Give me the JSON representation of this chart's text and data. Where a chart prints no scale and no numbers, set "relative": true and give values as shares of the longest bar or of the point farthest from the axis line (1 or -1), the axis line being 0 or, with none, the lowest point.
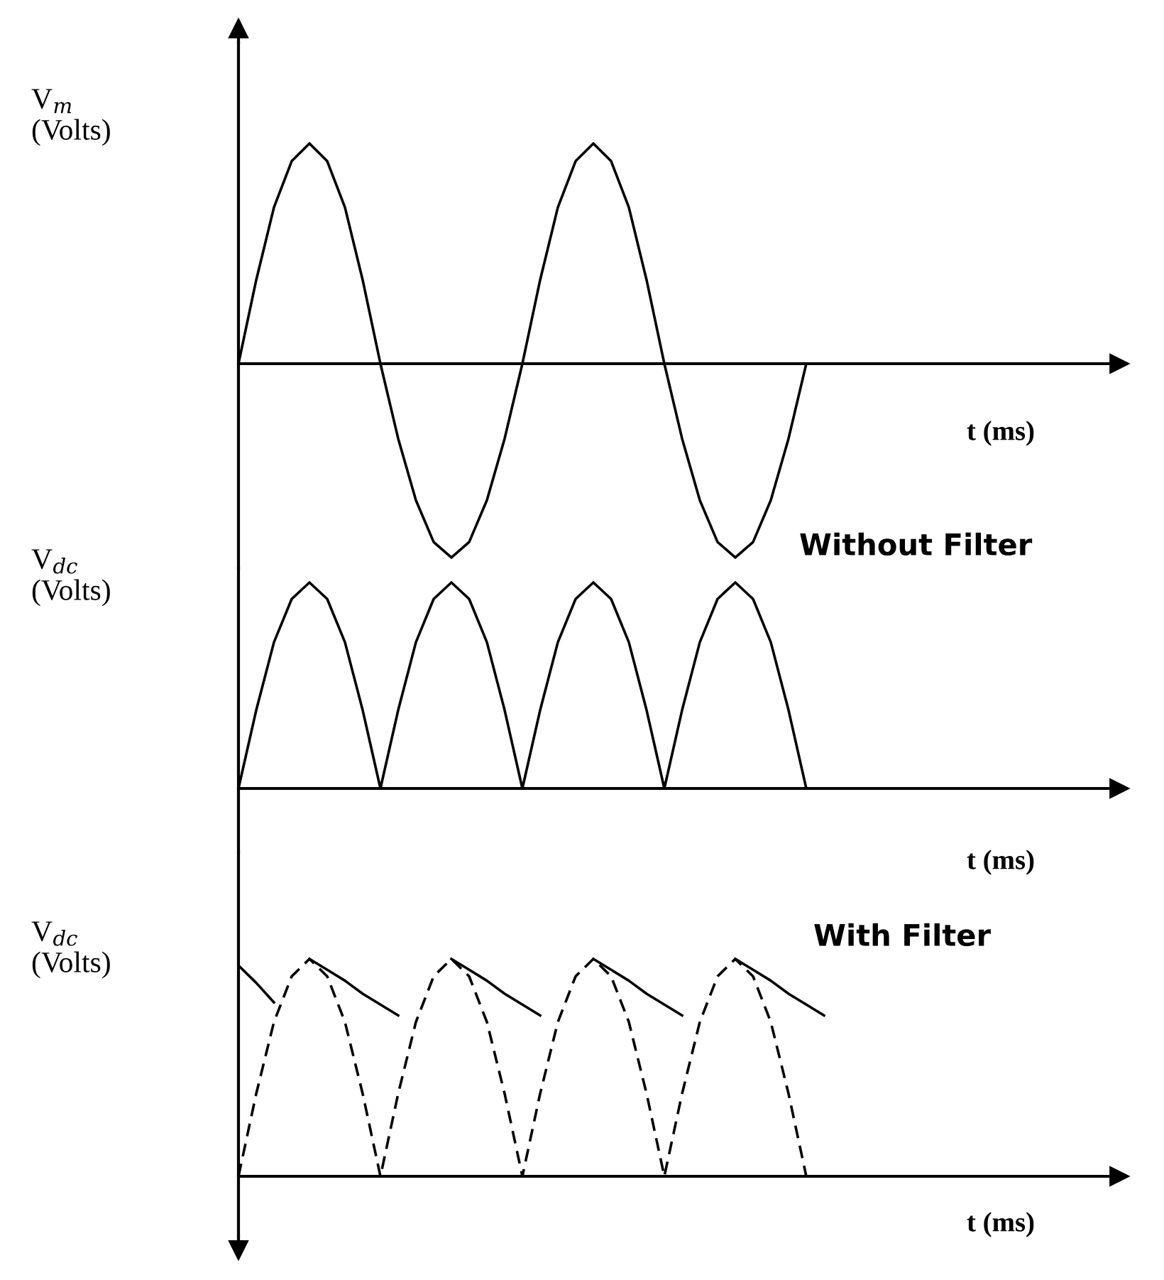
{
  "chart_data": [
    {
      "type": "line",
      "relative": true,
      "ylabel": "V$_{m}$\n(Volts)",
      "xlabel": "t (ms)",
      "categories": [
        null,
        null,
        null,
        null,
        null,
        null,
        null,
        null,
        null,
        null,
        null,
        null,
        null,
        null,
        null,
        null,
        null,
        null,
        null,
        null,
        null,
        null,
        null,
        null,
        null,
        null,
        null,
        null,
        null,
        null,
        null,
        null,
        null,
        null,
        null,
        null,
        null,
        null,
        null,
        null,
        null,
        null,
        null,
        null,
        null,
        null,
        null,
        null,
        null,
        null
      ],
      "series": [
        {
          "color": "#000000",
          "values": [
            0,
            0.38,
            0.71,
            0.92,
            1,
            0.92,
            0.71,
            0.38,
            0,
            -0.34,
            -0.62,
            -0.81,
            -0.88,
            -0.81,
            -0.62,
            -0.34,
            0,
            0.38,
            0.71,
            0.92,
            1,
            0.92,
            0.71,
            0.38,
            0,
            -0.34,
            -0.62,
            -0.81,
            -0.88,
            -0.81,
            -0.62,
            -0.34,
            0,
            null,
            null,
            null,
            null,
            null,
            null,
            null,
            null,
            null,
            null,
            null,
            null,
            null,
            null,
            null,
            null,
            null
          ]
        }
      ]
    },
    {
      "type": "line",
      "relative": true,
      "ylabel": "V$_{dc}$\n(Volts)",
      "xlabel": "t (ms)",
      "annotations": [
        "Without Filter"
      ],
      "categories": [
        null,
        null,
        null,
        null,
        null,
        null,
        null,
        null,
        null,
        null,
        null,
        null,
        null,
        null,
        null,
        null,
        null,
        null,
        null,
        null,
        null,
        null,
        null,
        null,
        null,
        null,
        null,
        null,
        null,
        null,
        null,
        null,
        null,
        null,
        null,
        null,
        null,
        null,
        null,
        null,
        null,
        null,
        null,
        null,
        null,
        null,
        null,
        null,
        null,
        null
      ],
      "series": [
        {
          "color": "#000000",
          "values": [
            0,
            0.38,
            0.71,
            0.92,
            1,
            0.92,
            0.71,
            0.38,
            0,
            0.38,
            0.71,
            0.92,
            1,
            0.92,
            0.71,
            0.38,
            0,
            0.38,
            0.71,
            0.92,
            1,
            0.92,
            0.71,
            0.38,
            0,
            0.38,
            0.71,
            0.92,
            1,
            0.92,
            0.71,
            0.38,
            0,
            null,
            null,
            null,
            null,
            null,
            null,
            null,
            null,
            null,
            null,
            null,
            null,
            null,
            null,
            null,
            null,
            null
          ]
        }
      ]
    },
    {
      "type": "line",
      "relative": true,
      "ylabel": "V$_{dc}$\n(Volts)",
      "xlabel": "t (ms)",
      "annotations": [
        "With Filter"
      ],
      "categories": [
        null,
        null,
        null,
        null,
        null,
        null,
        null,
        null,
        null,
        null,
        null,
        null,
        null,
        null,
        null,
        null,
        null,
        null,
        null,
        null,
        null,
        null,
        null,
        null,
        null,
        null,
        null,
        null,
        null,
        null,
        null,
        null,
        null,
        null,
        null,
        null,
        null,
        null,
        null,
        null,
        null,
        null,
        null,
        null,
        null,
        null,
        null,
        null,
        null,
        null
      ],
      "series": [
        {
          "color": "#000000",
          "line_style": "dashed",
          "values": [
            0,
            0.38,
            0.71,
            0.92,
            1,
            0.92,
            0.71,
            0.38,
            0,
            0.38,
            0.71,
            0.92,
            1,
            0.92,
            0.71,
            0.38,
            0,
            0.38,
            0.71,
            0.92,
            1,
            0.92,
            0.71,
            0.38,
            0,
            0.38,
            0.71,
            0.92,
            1,
            0.92,
            0.71,
            0.38,
            0,
            null,
            null,
            null,
            null,
            null,
            null,
            null,
            null,
            null,
            null,
            null,
            null,
            null,
            null,
            null,
            null,
            null
          ]
        },
        {
          "color": "#000000",
          "line_style": "solid",
          "values": [
            0.97,
            0.89,
            0.8,
            null,
            1,
            0.95,
            0.9,
            0.84,
            0.79,
            0.74,
            null,
            null,
            1,
            0.95,
            0.9,
            0.84,
            0.79,
            0.74,
            null,
            null,
            1,
            0.95,
            0.9,
            0.84,
            0.79,
            0.74,
            null,
            null,
            1,
            0.95,
            0.9,
            0.84,
            0.79,
            0.74,
            null,
            null,
            null,
            null,
            null,
            null,
            null,
            null,
            null,
            null,
            null,
            null,
            null,
            null,
            null,
            null
          ]
        }
      ]
    }
  ]
}
